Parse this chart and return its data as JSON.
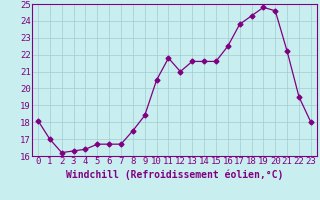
{
  "x": [
    0,
    1,
    2,
    3,
    4,
    5,
    6,
    7,
    8,
    9,
    10,
    11,
    12,
    13,
    14,
    15,
    16,
    17,
    18,
    19,
    20,
    21,
    22,
    23
  ],
  "y": [
    18.1,
    17.0,
    16.2,
    16.3,
    16.4,
    16.7,
    16.7,
    16.7,
    17.5,
    18.4,
    20.5,
    21.8,
    21.0,
    21.6,
    21.6,
    21.6,
    22.5,
    23.8,
    24.3,
    24.8,
    24.6,
    22.2,
    19.5,
    18.0
  ],
  "ylim": [
    16,
    25
  ],
  "yticks": [
    16,
    17,
    18,
    19,
    20,
    21,
    22,
    23,
    24,
    25
  ],
  "xlim_min": -0.5,
  "xlim_max": 23.5,
  "xticks": [
    0,
    1,
    2,
    3,
    4,
    5,
    6,
    7,
    8,
    9,
    10,
    11,
    12,
    13,
    14,
    15,
    16,
    17,
    18,
    19,
    20,
    21,
    22,
    23
  ],
  "line_color": "#800080",
  "marker": "D",
  "marker_size": 2.5,
  "background_color": "#c8eef0",
  "grid_color": "#a0ccd0",
  "xlabel": "Windchill (Refroidissement éolien,°C)",
  "xlabel_fontsize": 7,
  "tick_fontsize": 6.5,
  "tick_color": "#800080",
  "label_color": "#800080"
}
